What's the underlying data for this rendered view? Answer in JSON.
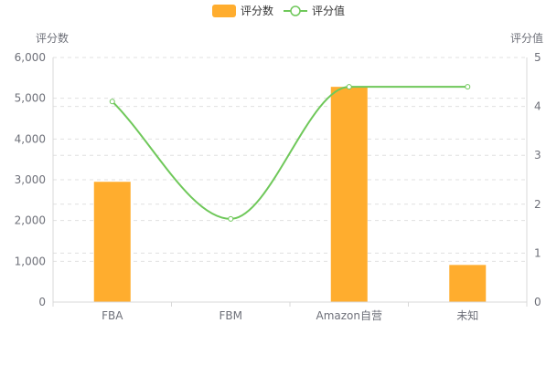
{
  "chart_data": {
    "type": "bar",
    "categories": [
      "FBA",
      "FBM",
      "Amazon自营",
      "未知"
    ],
    "series": [
      {
        "name": "评分数",
        "type": "bar",
        "axis": "left",
        "color": "#ffad2e",
        "values": [
          2950,
          0,
          5280,
          910
        ]
      },
      {
        "name": "评分值",
        "type": "line",
        "axis": "right",
        "smooth": true,
        "color": "#6fc85a",
        "values": [
          4.1,
          1.7,
          4.4,
          4.4
        ]
      }
    ],
    "y_left": {
      "label": "评分数",
      "min": 0,
      "max": 6000,
      "ticks": [
        "0",
        "1,000",
        "2,000",
        "3,000",
        "4,000",
        "5,000",
        "6,000"
      ]
    },
    "y_right": {
      "label": "评分值",
      "min": 0,
      "max": 5,
      "ticks": [
        "0",
        "1",
        "2",
        "3",
        "4",
        "5"
      ]
    },
    "grid": true,
    "legend_position": "top-center"
  }
}
